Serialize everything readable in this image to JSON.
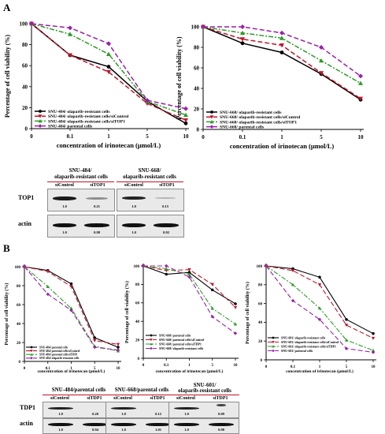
{
  "panel_labels": {
    "a": "A",
    "b": "B"
  },
  "colors": {
    "black": "#000000",
    "red": "#c0142b",
    "green": "#2f9a2a",
    "purple": "#9b1fa8"
  },
  "chart_data": [
    {
      "type": "line",
      "id": "A1",
      "title": "",
      "xlabel": "concentration of irinotecan (μmol/L)",
      "ylabel": "Percentage of cell viability (%)",
      "categories": [
        "0",
        "0.1",
        "1",
        "5",
        "10"
      ],
      "ylim": [
        0,
        100
      ],
      "yticks": [
        "0",
        "20",
        "40",
        "60",
        "80",
        "100"
      ],
      "legend_position": "bottom-left",
      "series": [
        {
          "name": "SNU-484/ olaparib-resistant cells",
          "color": "#000000",
          "dash": "",
          "marker": "circle",
          "values": [
            100,
            70,
            59,
            26,
            5
          ]
        },
        {
          "name": "SNU-484/ olaparib-resistant cells/siControl",
          "color": "#c0142b",
          "dash": "6,3",
          "marker": "triangle-down",
          "values": [
            100,
            70,
            54,
            24,
            8
          ]
        },
        {
          "name": "SNU-484/ olaparib-resistant cells/siTOP1",
          "color": "#2f9a2a",
          "dash": "6,2,2,2",
          "marker": "triangle",
          "values": [
            100,
            90,
            71,
            26,
            13
          ]
        },
        {
          "name": "SNU-484/ parental cells",
          "color": "#9b1fa8",
          "dash": "6,3",
          "marker": "diamond",
          "values": [
            100,
            96,
            81,
            27,
            19
          ]
        }
      ]
    },
    {
      "type": "line",
      "id": "A2",
      "title": "",
      "xlabel": "concentration of irinotecan (μmol/L)",
      "ylabel": "Percentage of cell viability (%)",
      "categories": [
        "0",
        "0.1",
        "1",
        "5",
        "10"
      ],
      "ylim": [
        0,
        100
      ],
      "yticks": [
        "0",
        "20",
        "40",
        "60",
        "80",
        "100"
      ],
      "legend_position": "bottom-left",
      "series": [
        {
          "name": "SNU-668/ olaparib-resistant cells",
          "color": "#000000",
          "dash": "",
          "marker": "circle",
          "values": [
            100,
            84,
            75,
            54,
            29
          ]
        },
        {
          "name": "SNU-668/ olaparib-resistant cells/siControl",
          "color": "#c0142b",
          "dash": "6,3",
          "marker": "triangle-down",
          "values": [
            100,
            88,
            82,
            55,
            30
          ]
        },
        {
          "name": "SNU-668/ olaparib-resistant cells/siTOP1",
          "color": "#2f9a2a",
          "dash": "6,2,2,2",
          "marker": "triangle",
          "values": [
            100,
            94,
            89,
            67,
            45
          ]
        },
        {
          "name": "SNU-668/ parental cells",
          "color": "#9b1fa8",
          "dash": "6,3",
          "marker": "diamond",
          "values": [
            100,
            100,
            94,
            80,
            52
          ]
        }
      ]
    },
    {
      "type": "line",
      "id": "B1",
      "title": "",
      "xlabel": "concentration of irinotecan (μmol/L)",
      "ylabel": "Percentage of cell viability (%)",
      "categories": [
        "0",
        "0.1",
        "1",
        "5",
        "10"
      ],
      "ylim": [
        0,
        100
      ],
      "yticks": [
        "0",
        "20",
        "40",
        "60",
        "80",
        "100"
      ],
      "legend_position": "bottom-left",
      "series": [
        {
          "name": "SNU-484/ parental cells",
          "color": "#000000",
          "dash": "",
          "marker": "circle",
          "values": [
            100,
            96,
            82,
            25,
            15
          ]
        },
        {
          "name": "SNU-484/ parental cells/siControl",
          "color": "#c0142b",
          "dash": "6,3",
          "marker": "triangle-down",
          "values": [
            100,
            95,
            79,
            22,
            18
          ]
        },
        {
          "name": "SNU-484/ parental cells/siTDP1",
          "color": "#2f9a2a",
          "dash": "6,2,2,2",
          "marker": "triangle",
          "values": [
            100,
            79,
            56,
            16,
            11
          ]
        },
        {
          "name": "SNU-484/ olaparib-resistant cells",
          "color": "#9b1fa8",
          "dash": "6,3",
          "marker": "diamond",
          "values": [
            100,
            71,
            54,
            15,
            12
          ]
        }
      ]
    },
    {
      "type": "line",
      "id": "B2",
      "title": "",
      "xlabel": "concentration of irinotecan (μmol/L)",
      "ylabel": "Percentage of cell viability (%)",
      "categories": [
        "0",
        "0.1",
        "1",
        "5",
        "10"
      ],
      "ylim": [
        0,
        100
      ],
      "yticks": [
        "0",
        "20",
        "40",
        "60",
        "80",
        "100"
      ],
      "legend_position": "bottom-left",
      "series": [
        {
          "name": "SNU-668/ parental cells",
          "color": "#000000",
          "dash": "",
          "marker": "circle",
          "values": [
            100,
            91,
            93,
            74,
            59
          ]
        },
        {
          "name": "SNU-668/ parental cells/siControl",
          "color": "#c0142b",
          "dash": "6,3",
          "marker": "triangle-down",
          "values": [
            100,
            95,
            96,
            80,
            55
          ]
        },
        {
          "name": "SNU-668/ parental cells/siTDP1",
          "color": "#2f9a2a",
          "dash": "6,2,2,2",
          "marker": "triangle",
          "values": [
            100,
            97,
            91,
            54,
            37
          ]
        },
        {
          "name": "SNU-668/ olaparib-resistant cells",
          "color": "#9b1fa8",
          "dash": "6,3",
          "marker": "diamond",
          "values": [
            100,
            100,
            88,
            45,
            27
          ]
        }
      ]
    },
    {
      "type": "line",
      "id": "B3",
      "title": "",
      "xlabel": "concentration of irinotecan (μmol/L)",
      "ylabel": "Percentage of cell viability (%)",
      "categories": [
        "0",
        "0.1",
        "1",
        "5",
        "10"
      ],
      "ylim": [
        0,
        100
      ],
      "yticks": [
        "0",
        "20",
        "40",
        "60",
        "80",
        "100"
      ],
      "legend_position": "bottom-left",
      "series": [
        {
          "name": "SNU-601/ olaparib-resistant cells",
          "color": "#000000",
          "dash": "",
          "marker": "circle",
          "values": [
            100,
            97,
            88,
            43,
            28
          ]
        },
        {
          "name": "SNU-601/ olaparib-resistant cells/siControl",
          "color": "#c0142b",
          "dash": "6,3",
          "marker": "triangle-down",
          "values": [
            100,
            95,
            80,
            37,
            23
          ]
        },
        {
          "name": "SNU-601/ olaparib-resistant cells/siTDP1",
          "color": "#2f9a2a",
          "dash": "6,2,2,2",
          "marker": "triangle",
          "values": [
            100,
            80,
            55,
            21,
            10
          ]
        },
        {
          "name": "SNU-601/ parental cells",
          "color": "#9b1fa8",
          "dash": "6,3",
          "marker": "diamond",
          "values": [
            100,
            63,
            43,
            12,
            8
          ]
        }
      ]
    }
  ],
  "blot_a": {
    "header_left_1": "SNU-484/",
    "header_left_2": "olaparib-resistant cells",
    "header_right_1": "SNU-668/",
    "header_right_2": "olaparib-resistant cells",
    "sub": [
      "siControl",
      "siTOP1",
      "siControl",
      "siTOP1"
    ],
    "row1_label": "TOP1",
    "row2_label": "actin",
    "row1_quant": [
      "1.0",
      "0.21",
      "1.0",
      "0.15"
    ],
    "row2_quant": [
      "1.0",
      "0.98",
      "1.0",
      "0.92"
    ]
  },
  "blot_b": {
    "header_1": "SNU-484/parental cells",
    "header_2": "SNU-668/parental cells",
    "header_3a": "SNU-601/",
    "header_3b": "olaparib-resistant cells",
    "sub": [
      "siControl",
      "siTDP1",
      "siControl",
      "siTDP1",
      "siControl",
      "siTDP1"
    ],
    "row1_label": "TDP1",
    "row2_label": "actin",
    "row1_quant": [
      "1.0",
      "0.20",
      "1.0",
      "0.12",
      "1.0",
      "0.09"
    ],
    "row2_quant": [
      "1.0",
      "0.94",
      "1.0",
      "1.01",
      "1.0",
      "0.98"
    ]
  }
}
